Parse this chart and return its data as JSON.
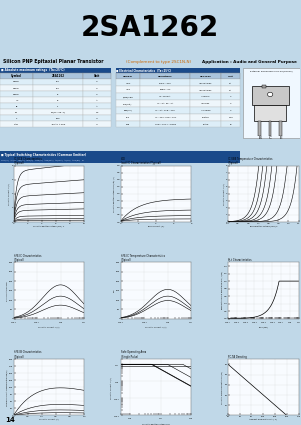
{
  "title": "2SA1262",
  "subtitle": "Silicon PNP Epitaxial Planar Transistor",
  "subtitle_complement": "(Complement to type 2SC1N-N)",
  "application": "Application : Audio and General Purpose",
  "page_number": "14",
  "header_bg": "#00FFFF",
  "light_blue_bg": "#c0d8e8",
  "table_bg": "#ddeef8",
  "abs_ratings_title": "Absolute maximum ratings",
  "abs_ratings_temp": "(Ta=25°C)",
  "abs_ratings_cols": [
    "Symbol",
    "2SA1262",
    "Unit"
  ],
  "abs_ratings_rows": [
    [
      "VCBO",
      "-60",
      "V"
    ],
    [
      "VCEO",
      "-60",
      "V"
    ],
    [
      "VEBO",
      "-6",
      "V"
    ],
    [
      "IC",
      "-8",
      "A"
    ],
    [
      "IB",
      "-1",
      "A"
    ],
    [
      "PC",
      "50(Tc=25°C)",
      "W"
    ],
    [
      "Tj",
      "150",
      "°C"
    ],
    [
      "Tstg",
      "-55 to +150",
      "°C"
    ]
  ],
  "elec_chars_title": "Electrical Characteristics",
  "elec_chars_temp": "(Ta=25°C)",
  "elec_chars_cols": [
    "Symbol",
    "Conditions",
    "2SA1262",
    "Unit"
  ],
  "elec_chars_rows": [
    [
      "ICBO",
      "VCBO=-60V",
      "<100nAmax",
      "μA"
    ],
    [
      "IEBO",
      "VEBO=-6V",
      "<100nAmax",
      "μA"
    ],
    [
      "V(BR)CEO",
      "IC=-200mA",
      "<-60min",
      "V"
    ],
    [
      "VCE(sat)",
      "IC=-6A, IB=-1A",
      "<4Vmax",
      "V"
    ],
    [
      "VBE(on)",
      "IC=-6A, VCE=-10V",
      "<-2.5max",
      "V"
    ],
    [
      "hFE",
      "IC=-12V, VCE=-10V",
      "100typ",
      "MHz"
    ],
    [
      "Cob",
      "VCB=-10V, f=1MHz",
      "80typ",
      "pF"
    ]
  ],
  "switch_title": "Typical Switching Characteristics (Common Emitter)",
  "switch_cols": [
    "VCC(V)",
    "IC(A)",
    "IB1(A)",
    "IB2(A)",
    "VCE(V)",
    "ton(mA)",
    "ts(mA)",
    "tf(μs)",
    "toff(μs)",
    "B"
  ],
  "switch_row": [
    "-20",
    "1.0",
    "-2",
    "-1.0",
    "0",
    "-3000",
    "3000",
    "<0.25typ",
    "6.75typ",
    "<0.25typ"
  ],
  "ext_dim_title": "External Dimensions MT-25(TO220)",
  "graphs": [
    {
      "title": "IC-VCE Characteristics (Typical)",
      "xlabel": "Collector-Emitter Voltage (VCE) V",
      "ylabel": "Collector Current IC (A)"
    },
    {
      "title": "VCE(sat)-IC Characteristics (Typical)",
      "xlabel": "Base Current (IB)",
      "ylabel": "Collector-Emitter Voltage VCE(sat) (V)"
    },
    {
      "title": "IC-VBE Temperature Characteristics (Typical)",
      "xlabel": "Base-Emitter Voltage (VBE) V",
      "ylabel": "Collector Current IC (A)"
    },
    {
      "title": "hFE-IC Characteristics (Typical)",
      "xlabel": "Collector Current IC(A)",
      "ylabel": "DC Current Gain hFE"
    },
    {
      "title": "hFE-IC Temperature Characteristics (Typical)",
      "xlabel": "Collector Current IC(A)",
      "ylabel": "hFE"
    },
    {
      "title": "θj-t Characteristics",
      "xlabel": "Time (sec)",
      "ylabel": "Transient Thermal Resistance θj-c (°C/W)"
    },
    {
      "title": "hFE-IB Characteristics (Typical)",
      "xlabel": "Collector Current (A)",
      "ylabel": "Forward Current Transfer Ratio hFE(%)"
    },
    {
      "title": "Safe Operating Area (Single Pulse)",
      "xlabel": "Collector-Emitter Voltage V(V)",
      "ylabel": "Collector Current IC (A)"
    },
    {
      "title": "PC-TA Derating",
      "xlabel": "Ambient Temperature TA (°C)",
      "ylabel": "Collector Power Dissipation PC (W)"
    }
  ]
}
